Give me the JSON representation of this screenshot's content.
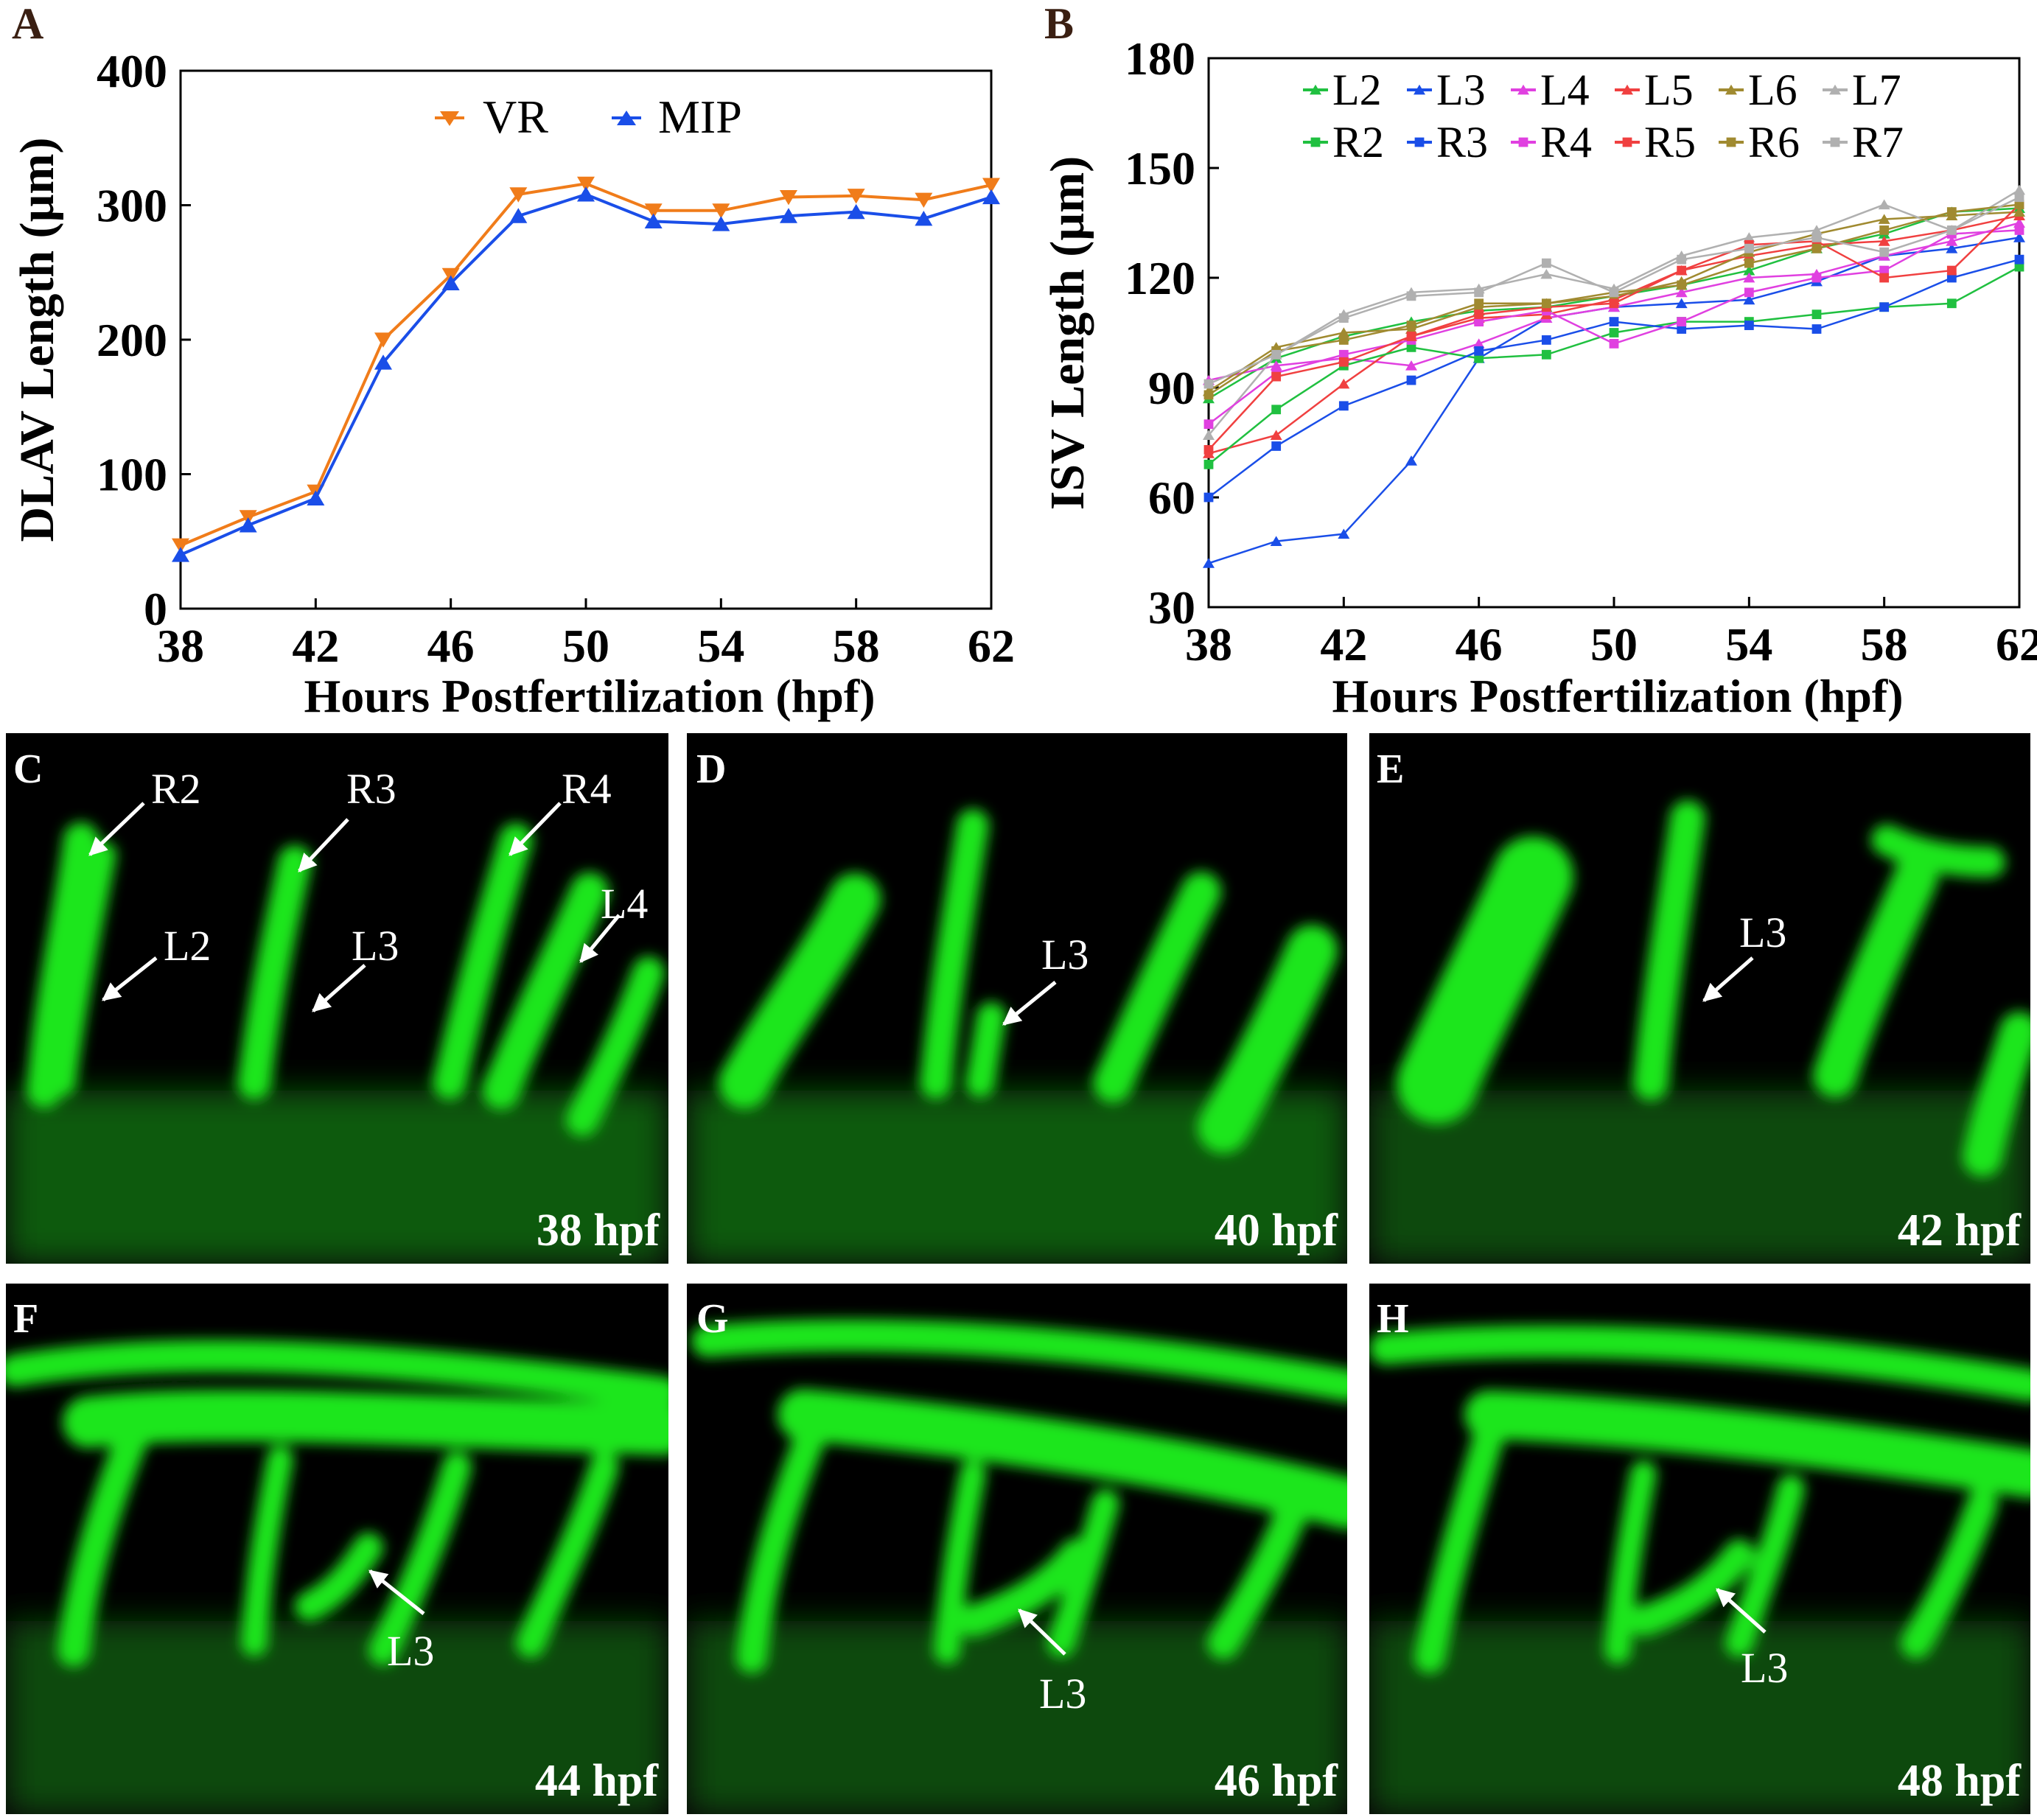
{
  "panel_letters": [
    "A",
    "B",
    "C",
    "D",
    "E",
    "F",
    "G",
    "H"
  ],
  "colors": {
    "VR": "#f07c1a",
    "MIP": "#1a4ee8",
    "L2": "#20c040",
    "R2": "#20c040",
    "L3": "#1a4ee8",
    "R3": "#1a4ee8",
    "L4": "#e040e0",
    "R4": "#e040e0",
    "L5": "#f04040",
    "R5": "#f04040",
    "L6": "#a08a30",
    "R6": "#a08a30",
    "L7": "#b0b0b0",
    "R7": "#b0b0b0",
    "vessel": "#1ee61e",
    "image_bg": "#000000"
  },
  "chart_data": [
    {
      "type": "line",
      "panel": "A",
      "xlabel": "Hours Postfertilization  (hpf)",
      "ylabel": "DLAV Length (µm)",
      "xlim": [
        38,
        62
      ],
      "ylim": [
        0,
        400
      ],
      "xticks": [
        38,
        42,
        46,
        50,
        54,
        58,
        62
      ],
      "yticks": [
        0,
        100,
        200,
        300,
        400
      ],
      "legend_position": "top-center",
      "x": [
        38,
        40,
        42,
        44,
        46,
        48,
        50,
        52,
        54,
        56,
        58,
        60,
        62
      ],
      "series": [
        {
          "name": "VR",
          "marker": "triangle-down",
          "values": [
            47,
            68,
            87,
            200,
            248,
            308,
            316,
            296,
            296,
            306,
            307,
            304,
            315
          ]
        },
        {
          "name": "MIP",
          "marker": "triangle-up",
          "values": [
            40,
            62,
            82,
            183,
            242,
            292,
            308,
            288,
            286,
            292,
            295,
            290,
            306
          ]
        }
      ]
    },
    {
      "type": "line",
      "panel": "B",
      "xlabel": "Hours Postfertilization  (hpf)",
      "ylabel": "ISV Length (µm)",
      "xlim": [
        38,
        62
      ],
      "ylim": [
        30,
        180
      ],
      "xticks": [
        38,
        42,
        46,
        50,
        54,
        58,
        62
      ],
      "yticks": [
        30,
        60,
        90,
        120,
        150,
        180
      ],
      "legend_position": "top",
      "x": [
        38,
        40,
        42,
        44,
        46,
        48,
        50,
        52,
        54,
        56,
        58,
        60,
        62
      ],
      "series": [
        {
          "name": "L2",
          "marker": "triangle",
          "values": [
            87,
            98,
            104,
            108,
            111,
            112,
            115,
            118,
            122,
            128,
            132,
            138,
            139
          ]
        },
        {
          "name": "L3",
          "marker": "triangle",
          "values": [
            42,
            48,
            50,
            70,
            98,
            109,
            112,
            113,
            114,
            119,
            126,
            128,
            131
          ]
        },
        {
          "name": "L4",
          "marker": "triangle",
          "values": [
            92,
            96,
            98,
            96,
            102,
            109,
            112,
            116,
            120,
            121,
            126,
            130,
            135
          ]
        },
        {
          "name": "L5",
          "marker": "triangle",
          "values": [
            72,
            77,
            91,
            104,
            109,
            110,
            114,
            122,
            126,
            129,
            130,
            133,
            137
          ]
        },
        {
          "name": "L6",
          "marker": "triangle",
          "values": [
            89,
            101,
            105,
            106,
            112,
            113,
            115,
            119,
            127,
            132,
            136,
            137,
            138
          ]
        },
        {
          "name": "L7",
          "marker": "triangle",
          "values": [
            77,
            99,
            110,
            116,
            117,
            121,
            117,
            126,
            131,
            133,
            140,
            133,
            144
          ]
        },
        {
          "name": "R2",
          "marker": "square",
          "values": [
            69,
            84,
            96,
            101,
            98,
            99,
            105,
            108,
            108,
            110,
            112,
            113,
            123
          ]
        },
        {
          "name": "R3",
          "marker": "square",
          "values": [
            60,
            74,
            85,
            92,
            100,
            103,
            108,
            106,
            107,
            106,
            112,
            120,
            125
          ]
        },
        {
          "name": "R4",
          "marker": "square",
          "values": [
            80,
            94,
            99,
            103,
            108,
            111,
            102,
            108,
            116,
            120,
            122,
            132,
            133
          ]
        },
        {
          "name": "R5",
          "marker": "square",
          "values": [
            73,
            93,
            97,
            104,
            110,
            112,
            113,
            122,
            129,
            130,
            120,
            122,
            140
          ]
        },
        {
          "name": "R6",
          "marker": "square",
          "values": [
            88,
            100,
            103,
            107,
            113,
            113,
            116,
            118,
            124,
            128,
            133,
            138,
            140
          ]
        },
        {
          "name": "R7",
          "marker": "square",
          "values": [
            91,
            99,
            109,
            115,
            116,
            124,
            116,
            125,
            128,
            131,
            127,
            133,
            142
          ]
        }
      ]
    }
  ],
  "image_panels": [
    {
      "panel": "C",
      "time": "38 hpf",
      "labels": [
        "R2",
        "R3",
        "R4",
        "L2",
        "L3",
        "L4"
      ]
    },
    {
      "panel": "D",
      "time": "40 hpf",
      "labels": [
        "L3"
      ]
    },
    {
      "panel": "E",
      "time": "42 hpf",
      "labels": [
        "L3"
      ]
    },
    {
      "panel": "F",
      "time": "44 hpf",
      "labels": [
        "L3"
      ]
    },
    {
      "panel": "G",
      "time": "46 hpf",
      "labels": [
        "L3"
      ]
    },
    {
      "panel": "H",
      "time": "48 hpf",
      "labels": [
        "L3"
      ]
    }
  ]
}
